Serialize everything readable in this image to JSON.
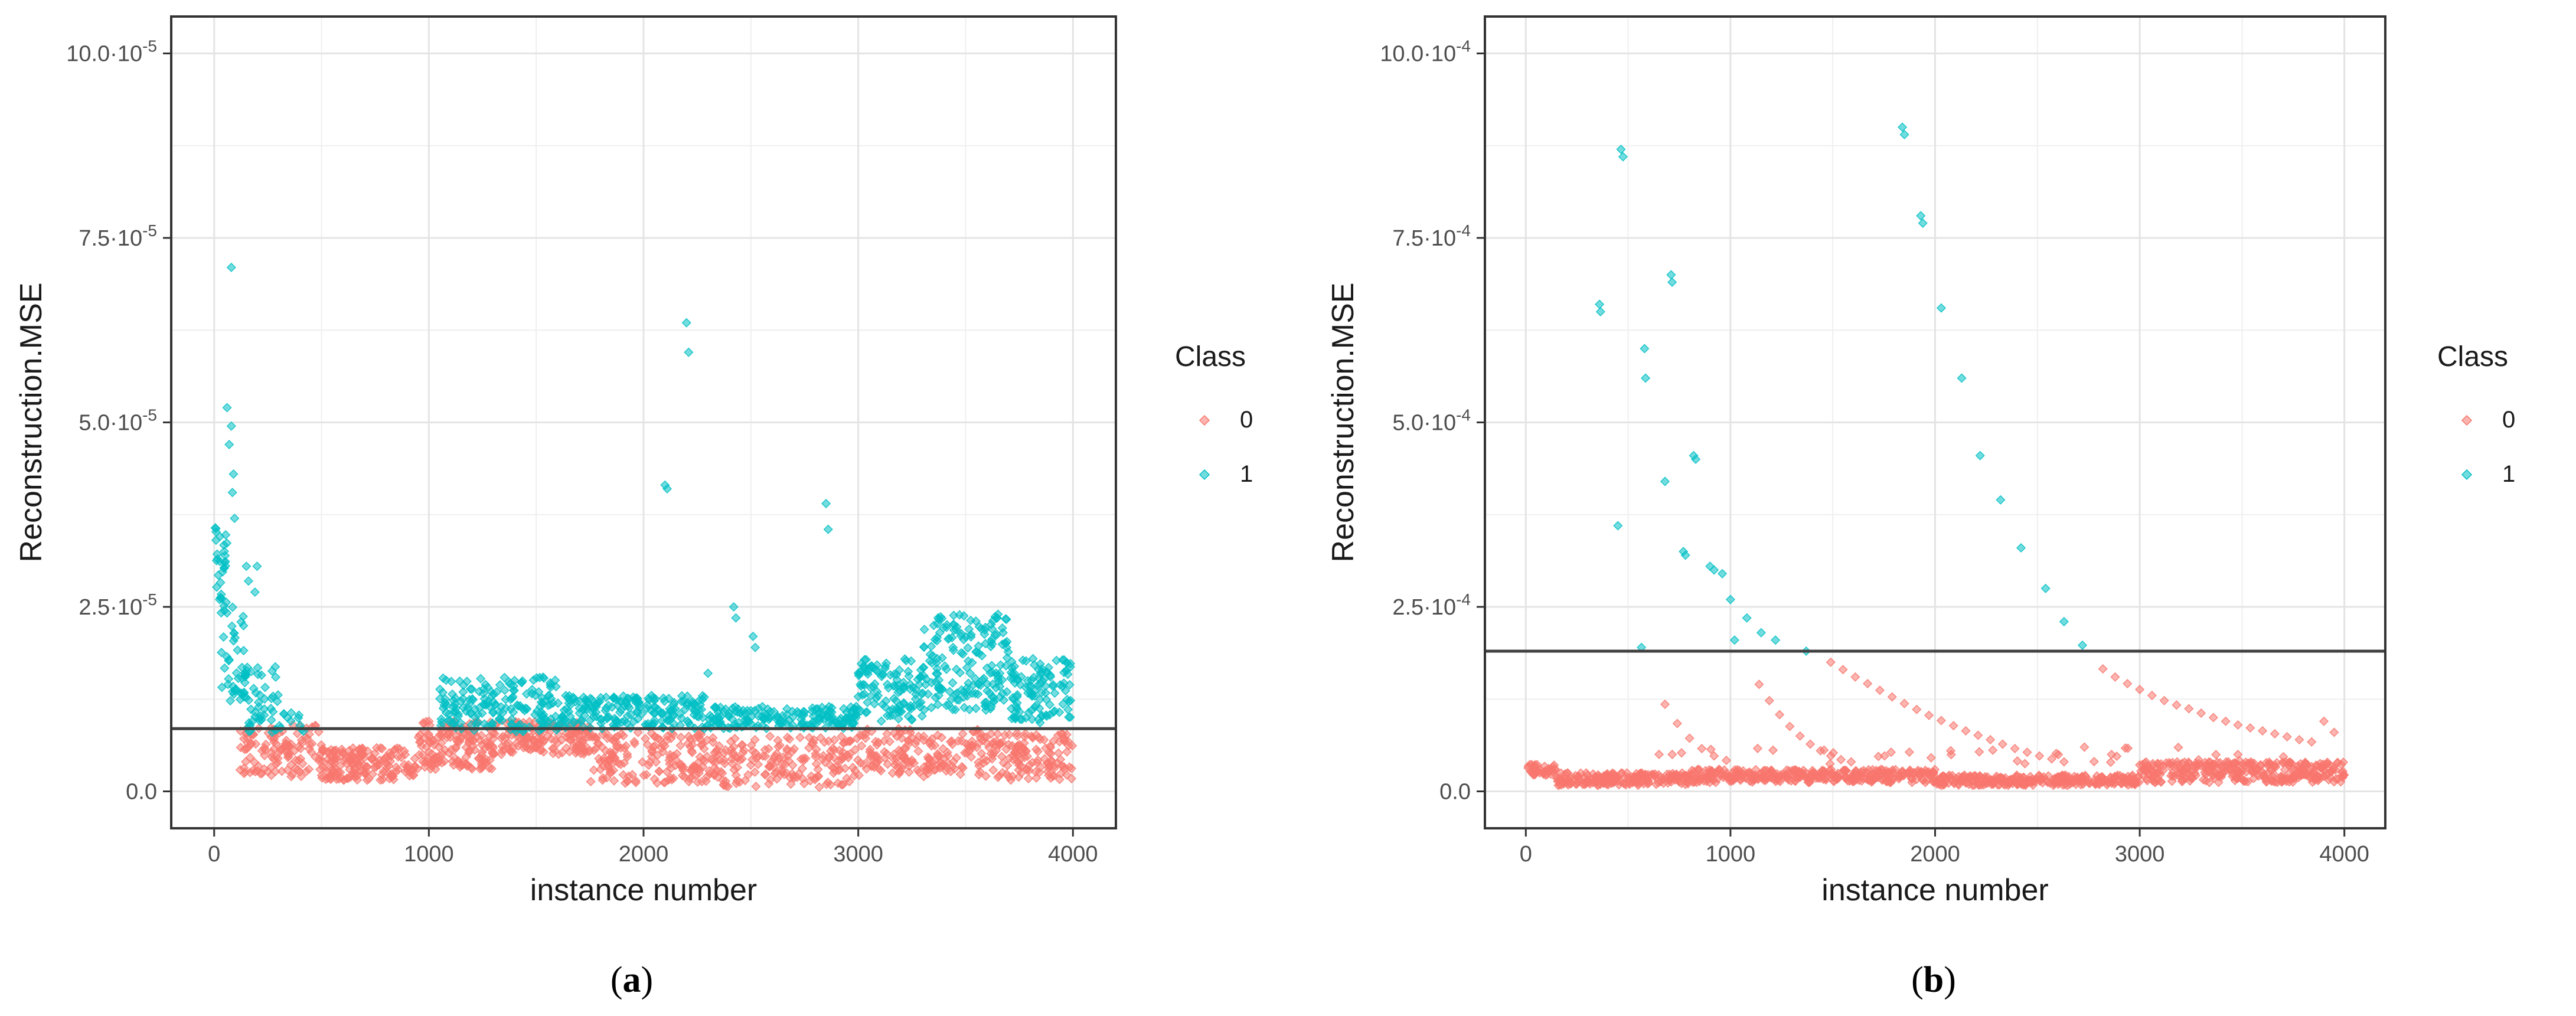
{
  "colors": {
    "class0": "#f8766d",
    "class1": "#00bfc4"
  },
  "chart_data": [
    {
      "type": "scatter",
      "panel_label": "a",
      "xlabel": "instance number",
      "ylabel": "Reconstruction.MSE",
      "xlim": [
        -200,
        4200
      ],
      "ylim": [
        -5e-06,
        0.000105
      ],
      "x_ticks": [
        0,
        1000,
        2000,
        3000,
        4000
      ],
      "x_tick_labels": [
        "0",
        "1000",
        "2000",
        "3000",
        "4000"
      ],
      "y_ticks": [
        0.0,
        2.5e-05,
        5e-05,
        7.5e-05,
        0.0001
      ],
      "y_tick_labels": [
        "0.0",
        "2.5·10-5",
        "5.0·10-5",
        "7.5·10-5",
        "10.0·10-5"
      ],
      "threshold": 8.5e-06,
      "legend": {
        "title": "Class",
        "entries": [
          "0",
          "1"
        ],
        "placement": "right"
      },
      "series": [
        {
          "name": "0",
          "segments": [
            {
              "x0": 120,
              "x1": 500,
              "low": 2e-06,
              "high": 9e-06,
              "n": 120
            },
            {
              "x0": 500,
              "x1": 950,
              "low": 1.5e-06,
              "high": 6e-06,
              "n": 170
            },
            {
              "x0": 950,
              "x1": 1300,
              "low": 3e-06,
              "high": 9.5e-06,
              "n": 150
            },
            {
              "x0": 1300,
              "x1": 1750,
              "low": 5e-06,
              "high": 9.5e-06,
              "n": 160
            },
            {
              "x0": 1750,
              "x1": 2300,
              "low": 1e-06,
              "high": 8e-06,
              "n": 170
            },
            {
              "x0": 2300,
              "x1": 3000,
              "low": 5e-07,
              "high": 7.5e-06,
              "n": 190
            },
            {
              "x0": 3000,
              "x1": 3600,
              "low": 2e-06,
              "high": 8.5e-06,
              "n": 170
            },
            {
              "x0": 3600,
              "x1": 4000,
              "low": 1.5e-06,
              "high": 8e-06,
              "n": 130
            }
          ],
          "points": []
        },
        {
          "name": "1",
          "segments": [
            {
              "x0": 0,
              "x1": 60,
              "low": 2.5e-05,
              "high": 3.6e-05,
              "n": 30
            },
            {
              "x0": 30,
              "x1": 150,
              "low": 1.2e-05,
              "high": 2.5e-05,
              "n": 40
            },
            {
              "x0": 120,
              "x1": 300,
              "low": 8e-06,
              "high": 1.7e-05,
              "n": 50
            },
            {
              "x0": 300,
              "x1": 420,
              "low": 8e-06,
              "high": 1.1e-05,
              "n": 12
            },
            {
              "x0": 1050,
              "x1": 1600,
              "low": 8e-06,
              "high": 1.55e-05,
              "n": 180
            },
            {
              "x0": 1600,
              "x1": 2300,
              "low": 8.5e-06,
              "high": 1.3e-05,
              "n": 200
            },
            {
              "x0": 2300,
              "x1": 3000,
              "low": 8.5e-06,
              "high": 1.15e-05,
              "n": 170
            },
            {
              "x0": 3000,
              "x1": 3300,
              "low": 9.5e-06,
              "high": 1.8e-05,
              "n": 110
            },
            {
              "x0": 3300,
              "x1": 3700,
              "low": 1.1e-05,
              "high": 2.4e-05,
              "n": 180
            },
            {
              "x0": 3700,
              "x1": 4000,
              "low": 9e-06,
              "high": 1.8e-05,
              "n": 110
            }
          ],
          "points": [
            [
              80,
              7.1e-05
            ],
            [
              60,
              5.2e-05
            ],
            [
              80,
              4.95e-05
            ],
            [
              70,
              4.7e-05
            ],
            [
              90,
              4.3e-05
            ],
            [
              85,
              4.05e-05
            ],
            [
              95,
              3.7e-05
            ],
            [
              150,
              3.05e-05
            ],
            [
              200,
              3.05e-05
            ],
            [
              160,
              2.85e-05
            ],
            [
              190,
              2.7e-05
            ],
            [
              2100,
              4.15e-05
            ],
            [
              2110,
              4.1e-05
            ],
            [
              2200,
              6.35e-05
            ],
            [
              2210,
              5.95e-05
            ],
            [
              2420,
              2.5e-05
            ],
            [
              2430,
              2.35e-05
            ],
            [
              2510,
              2.1e-05
            ],
            [
              2520,
              1.95e-05
            ],
            [
              2850,
              3.9e-05
            ],
            [
              2860,
              3.55e-05
            ],
            [
              2300,
              1.6e-05
            ]
          ]
        }
      ]
    },
    {
      "type": "scatter",
      "panel_label": "b",
      "xlabel": "instance number",
      "ylabel": "Reconstruction.MSE",
      "xlim": [
        -200,
        4200
      ],
      "ylim": [
        -5e-05,
        0.00105
      ],
      "x_ticks": [
        0,
        1000,
        2000,
        3000,
        4000
      ],
      "x_tick_labels": [
        "0",
        "1000",
        "2000",
        "3000",
        "4000"
      ],
      "y_ticks": [
        0.0,
        0.00025,
        0.0005,
        0.00075,
        0.001
      ],
      "y_tick_labels": [
        "0.0",
        "2.5·10-4",
        "5.0·10-4",
        "7.5·10-4",
        "10.0·10-4"
      ],
      "threshold": 0.00019,
      "legend": {
        "title": "Class",
        "entries": [
          "0",
          "1"
        ],
        "placement": "right"
      },
      "series": [
        {
          "name": "0",
          "segments": [
            {
              "x0": 0,
              "x1": 150,
              "low": 2.2e-05,
              "high": 3.8e-05,
              "n": 40
            },
            {
              "x0": 150,
              "x1": 800,
              "low": 8e-06,
              "high": 2.5e-05,
              "n": 200
            },
            {
              "x0": 800,
              "x1": 2000,
              "low": 1.2e-05,
              "high": 3e-05,
              "n": 360
            },
            {
              "x0": 2000,
              "x1": 3000,
              "low": 8e-06,
              "high": 2.2e-05,
              "n": 300
            },
            {
              "x0": 3000,
              "x1": 4000,
              "low": 1.2e-05,
              "high": 4e-05,
              "n": 320
            },
            {
              "x0": 650,
              "x1": 3950,
              "low": 3.5e-05,
              "high": 6e-05,
              "n": 40
            }
          ],
          "points": [
            [
              1490,
              0.000175
            ],
            [
              1550,
              0.000165
            ],
            [
              1610,
              0.000155
            ],
            [
              1670,
              0.000146
            ],
            [
              1730,
              0.000137
            ],
            [
              1790,
              0.000128
            ],
            [
              1850,
              0.000119
            ],
            [
              1910,
              0.000111
            ],
            [
              1970,
              0.000103
            ],
            [
              2030,
              9.6e-05
            ],
            [
              2090,
              8.9e-05
            ],
            [
              2150,
              8.2e-05
            ],
            [
              2210,
              7.6e-05
            ],
            [
              2270,
              7e-05
            ],
            [
              2330,
              6.4e-05
            ],
            [
              2390,
              5.8e-05
            ],
            [
              2450,
              5.3e-05
            ],
            [
              2510,
              4.8e-05
            ],
            [
              2570,
              4.4e-05
            ],
            [
              2630,
              4e-05
            ],
            [
              2820,
              0.000166
            ],
            [
              2880,
              0.000155
            ],
            [
              2940,
              0.000146
            ],
            [
              3000,
              0.000138
            ],
            [
              3060,
              0.00013
            ],
            [
              3120,
              0.000123
            ],
            [
              3180,
              0.000117
            ],
            [
              3240,
              0.000112
            ],
            [
              3300,
              0.000106
            ],
            [
              3360,
              0.0001
            ],
            [
              3420,
              9.5e-05
            ],
            [
              3480,
              9e-05
            ],
            [
              3540,
              8.6e-05
            ],
            [
              3600,
              8.2e-05
            ],
            [
              3660,
              7.8e-05
            ],
            [
              3720,
              7.4e-05
            ],
            [
              3780,
              7e-05
            ],
            [
              3840,
              6.7e-05
            ],
            [
              3900,
              9.5e-05
            ],
            [
              3950,
              8e-05
            ],
            [
              1140,
              0.000145
            ],
            [
              1190,
              0.000123
            ],
            [
              1240,
              0.000104
            ],
            [
              1290,
              8.8e-05
            ],
            [
              1340,
              7.5e-05
            ],
            [
              1390,
              6.4e-05
            ],
            [
              1440,
              5.5e-05
            ],
            [
              1490,
              4.8e-05
            ],
            [
              1540,
              4.3e-05
            ],
            [
              1590,
              4e-05
            ],
            [
              680,
              0.000118
            ],
            [
              740,
              9.2e-05
            ],
            [
              800,
              7.2e-05
            ],
            [
              860,
              5.8e-05
            ],
            [
              920,
              4.8e-05
            ],
            [
              980,
              4.2e-05
            ]
          ]
        },
        {
          "name": "1",
          "segments": [],
          "points": [
            [
              360,
              0.00066
            ],
            [
              365,
              0.00065
            ],
            [
              465,
              0.00087
            ],
            [
              475,
              0.00086
            ],
            [
              450,
              0.00036
            ],
            [
              565,
              0.000195
            ],
            [
              580,
              0.0006
            ],
            [
              585,
              0.00056
            ],
            [
              680,
              0.00042
            ],
            [
              710,
              0.0007
            ],
            [
              715,
              0.00069
            ],
            [
              770,
              0.000325
            ],
            [
              780,
              0.00032
            ],
            [
              820,
              0.000455
            ],
            [
              830,
              0.00045
            ],
            [
              900,
              0.000305
            ],
            [
              920,
              0.0003
            ],
            [
              960,
              0.000295
            ],
            [
              1000,
              0.00026
            ],
            [
              1020,
              0.000205
            ],
            [
              1080,
              0.000235
            ],
            [
              1150,
              0.000215
            ],
            [
              1220,
              0.000205
            ],
            [
              1370,
              0.00019
            ],
            [
              1840,
              0.0009
            ],
            [
              1850,
              0.00089
            ],
            [
              1930,
              0.00078
            ],
            [
              1940,
              0.00077
            ],
            [
              2030,
              0.000655
            ],
            [
              2130,
              0.00056
            ],
            [
              2220,
              0.000455
            ],
            [
              2320,
              0.000395
            ],
            [
              2420,
              0.00033
            ],
            [
              2540,
              0.000275
            ],
            [
              2630,
              0.00023
            ],
            [
              2720,
              0.000198
            ]
          ]
        }
      ]
    }
  ],
  "captions": [
    {
      "open": "(",
      "letter": "a",
      "close": ")"
    },
    {
      "open": "(",
      "letter": "b",
      "close": ")"
    }
  ]
}
